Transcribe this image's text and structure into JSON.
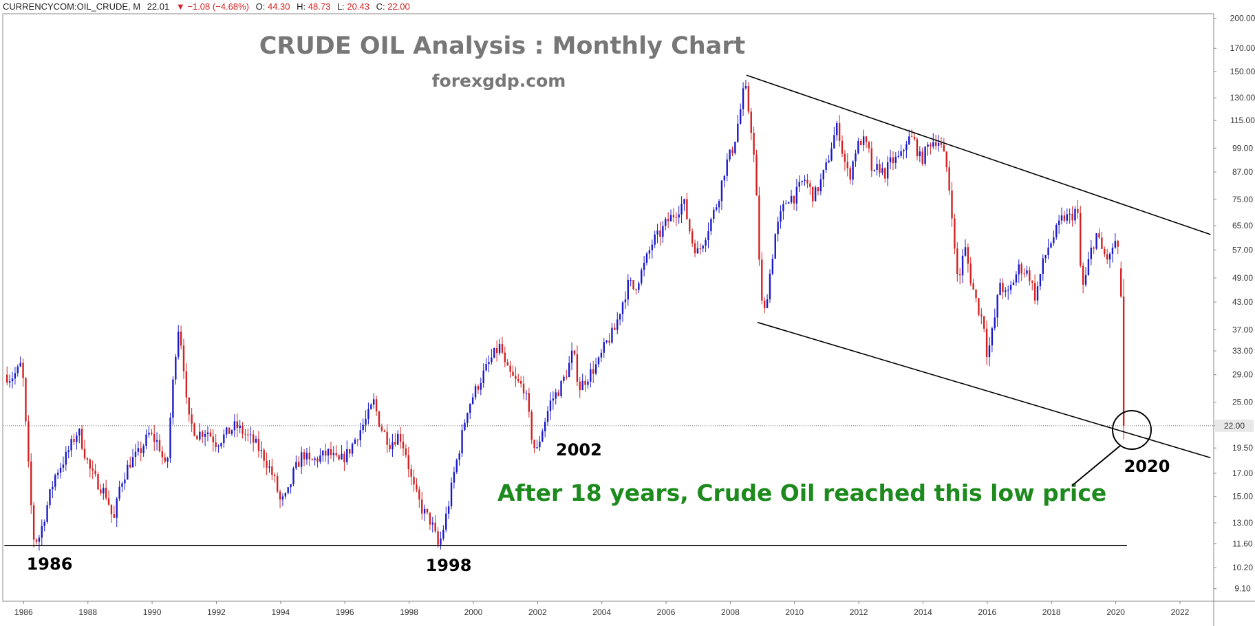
{
  "header": {
    "symbol": "CURRENCYCOM:OIL_CRUDE, M",
    "last": "22.01",
    "change": "−1.08 (−4.68%)",
    "o_label": "O:",
    "o_value": "44.30",
    "h_label": "H:",
    "h_value": "48.73",
    "l_label": "L:",
    "l_value": "20.43",
    "c_label": "C:",
    "c_value": "22.00",
    "down_arrow": "▼"
  },
  "chart_data": {
    "type": "candlestick",
    "title": "CRUDE OIL Analysis : Monthly Chart",
    "subtitle": "forexgdp.com",
    "scale": "log",
    "ylim": [
      8.5,
      205
    ],
    "xlim": [
      1985.35,
      2023.05
    ],
    "y_ticks": [
      200,
      170,
      150,
      130,
      115,
      99,
      87,
      75,
      65,
      57,
      49,
      43,
      37,
      33,
      29,
      25,
      22,
      19.5,
      17,
      15,
      13,
      11.6,
      10.2,
      9.1
    ],
    "y_tick_labels": [
      "200.00",
      "170.00",
      "150.00",
      "130.00",
      "115.00",
      "99.00",
      "87.00",
      "75.00",
      "65.00",
      "57.00",
      "49.00",
      "43.00",
      "37.00",
      "33.00",
      "29.00",
      "25.00",
      "22.00",
      "19.50",
      "17.00",
      "15.00",
      "13.00",
      "11.60",
      "10.20",
      "9.10"
    ],
    "x_ticks": [
      1986,
      1988,
      1990,
      1992,
      1994,
      1996,
      1998,
      2000,
      2002,
      2004,
      2006,
      2008,
      2010,
      2012,
      2014,
      2016,
      2018,
      2020,
      2022
    ],
    "x_tick_labels": [
      "1986",
      "1988",
      "1990",
      "1992",
      "1994",
      "1996",
      "1998",
      "2000",
      "2002",
      "2004",
      "2006",
      "2008",
      "2010",
      "2012",
      "2014",
      "2016",
      "2018",
      "2020",
      "2022"
    ],
    "current_price": 22.0,
    "current_price_label": "22.00",
    "colors": {
      "up": "#1a1acc",
      "down": "#d42020",
      "trend": "#000000",
      "annotation": "#1d8a1d",
      "title": "#777777"
    },
    "close_path": [
      [
        1985.4,
        29
      ],
      [
        1985.6,
        28.5
      ],
      [
        1985.8,
        29.5
      ],
      [
        1985.95,
        31
      ],
      [
        1986.1,
        20
      ],
      [
        1986.3,
        12
      ],
      [
        1986.45,
        11.8
      ],
      [
        1986.6,
        13
      ],
      [
        1986.8,
        15
      ],
      [
        1987.0,
        17
      ],
      [
        1987.3,
        18.5
      ],
      [
        1987.5,
        20
      ],
      [
        1987.7,
        21.5
      ],
      [
        1987.9,
        19
      ],
      [
        1988.1,
        17
      ],
      [
        1988.35,
        16
      ],
      [
        1988.6,
        15
      ],
      [
        1988.8,
        13
      ],
      [
        1989.0,
        16
      ],
      [
        1989.3,
        18
      ],
      [
        1989.6,
        19
      ],
      [
        1989.9,
        21
      ],
      [
        1990.2,
        20
      ],
      [
        1990.45,
        17
      ],
      [
        1990.6,
        25
      ],
      [
        1990.8,
        38
      ],
      [
        1990.95,
        33
      ],
      [
        1991.1,
        23
      ],
      [
        1991.4,
        21
      ],
      [
        1991.7,
        21.5
      ],
      [
        1992.0,
        20
      ],
      [
        1992.3,
        21
      ],
      [
        1992.6,
        22
      ],
      [
        1992.9,
        21
      ],
      [
        1993.2,
        20
      ],
      [
        1993.5,
        18.5
      ],
      [
        1993.8,
        16.5
      ],
      [
        1994.0,
        14.5
      ],
      [
        1994.2,
        15
      ],
      [
        1994.4,
        17
      ],
      [
        1994.7,
        19
      ],
      [
        1994.9,
        18
      ],
      [
        1995.2,
        18.5
      ],
      [
        1995.5,
        19
      ],
      [
        1995.8,
        18
      ],
      [
        1996.1,
        19
      ],
      [
        1996.4,
        21
      ],
      [
        1996.7,
        23
      ],
      [
        1996.9,
        25
      ],
      [
        1997.1,
        22
      ],
      [
        1997.4,
        20
      ],
      [
        1997.7,
        21
      ],
      [
        1997.9,
        19
      ],
      [
        1998.1,
        16
      ],
      [
        1998.4,
        14
      ],
      [
        1998.7,
        13
      ],
      [
        1998.9,
        11.5
      ],
      [
        1999.0,
        12
      ],
      [
        1999.2,
        14
      ],
      [
        1999.4,
        17
      ],
      [
        1999.6,
        20
      ],
      [
        1999.8,
        24
      ],
      [
        2000.0,
        26
      ],
      [
        2000.3,
        29
      ],
      [
        2000.6,
        32
      ],
      [
        2000.85,
        34
      ],
      [
        2001.0,
        30
      ],
      [
        2001.3,
        28
      ],
      [
        2001.6,
        27
      ],
      [
        2001.85,
        20
      ],
      [
        2001.97,
        19
      ],
      [
        2002.1,
        21
      ],
      [
        2002.4,
        25
      ],
      [
        2002.7,
        27
      ],
      [
        2002.95,
        30
      ],
      [
        2003.1,
        33
      ],
      [
        2003.3,
        27
      ],
      [
        2003.6,
        29
      ],
      [
        2003.9,
        31
      ],
      [
        2004.1,
        34
      ],
      [
        2004.4,
        37
      ],
      [
        2004.6,
        42
      ],
      [
        2004.85,
        48
      ],
      [
        2005.0,
        46
      ],
      [
        2005.3,
        52
      ],
      [
        2005.6,
        60
      ],
      [
        2005.8,
        62
      ],
      [
        2006.0,
        66
      ],
      [
        2006.3,
        70
      ],
      [
        2006.55,
        74
      ],
      [
        2006.8,
        60
      ],
      [
        2007.0,
        56
      ],
      [
        2007.3,
        64
      ],
      [
        2007.6,
        74
      ],
      [
        2007.85,
        90
      ],
      [
        2008.1,
        100
      ],
      [
        2008.3,
        120
      ],
      [
        2008.45,
        140
      ],
      [
        2008.55,
        124
      ],
      [
        2008.7,
        104
      ],
      [
        2008.85,
        68
      ],
      [
        2008.95,
        44
      ],
      [
        2009.05,
        40
      ],
      [
        2009.2,
        48
      ],
      [
        2009.4,
        62
      ],
      [
        2009.6,
        70
      ],
      [
        2009.8,
        76
      ],
      [
        2010.0,
        76
      ],
      [
        2010.3,
        84
      ],
      [
        2010.6,
        76
      ],
      [
        2010.8,
        82
      ],
      [
        2011.0,
        90
      ],
      [
        2011.2,
        104
      ],
      [
        2011.35,
        112
      ],
      [
        2011.5,
        96
      ],
      [
        2011.7,
        84
      ],
      [
        2011.9,
        98
      ],
      [
        2012.1,
        104
      ],
      [
        2012.3,
        98
      ],
      [
        2012.45,
        84
      ],
      [
        2012.6,
        90
      ],
      [
        2012.8,
        86
      ],
      [
        2013.0,
        92
      ],
      [
        2013.3,
        94
      ],
      [
        2013.5,
        104
      ],
      [
        2013.7,
        104
      ],
      [
        2013.9,
        94
      ],
      [
        2014.0,
        94
      ],
      [
        2014.2,
        102
      ],
      [
        2014.45,
        104
      ],
      [
        2014.6,
        98
      ],
      [
        2014.75,
        88
      ],
      [
        2014.9,
        70
      ],
      [
        2015.0,
        54
      ],
      [
        2015.1,
        48
      ],
      [
        2015.3,
        58
      ],
      [
        2015.5,
        48
      ],
      [
        2015.7,
        42
      ],
      [
        2015.9,
        38
      ],
      [
        2016.0,
        32
      ],
      [
        2016.2,
        38
      ],
      [
        2016.4,
        48
      ],
      [
        2016.6,
        44
      ],
      [
        2016.8,
        48
      ],
      [
        2017.0,
        52
      ],
      [
        2017.3,
        50
      ],
      [
        2017.5,
        44
      ],
      [
        2017.7,
        52
      ],
      [
        2017.9,
        58
      ],
      [
        2018.1,
        62
      ],
      [
        2018.35,
        68
      ],
      [
        2018.6,
        68
      ],
      [
        2018.8,
        72
      ],
      [
        2018.9,
        52
      ],
      [
        2019.0,
        46
      ],
      [
        2019.2,
        56
      ],
      [
        2019.4,
        62
      ],
      [
        2019.6,
        56
      ],
      [
        2019.8,
        54
      ],
      [
        2019.95,
        60
      ],
      [
        2020.05,
        58
      ],
      [
        2020.15,
        48
      ],
      [
        2020.25,
        22
      ]
    ],
    "highlight_candles": [
      {
        "date": "2020-02",
        "open": 51.6,
        "high": 53.5,
        "low": 44.0,
        "close": 44.3
      },
      {
        "date": "2020-03",
        "open": 44.3,
        "high": 48.73,
        "low": 20.43,
        "close": 22.0
      }
    ],
    "support_line": {
      "x": [
        1985.4,
        2020.35
      ],
      "y": [
        11.5,
        11.5
      ]
    },
    "channel_upper": {
      "x": [
        2008.5,
        2022.95
      ],
      "y": [
        147,
        62
      ]
    },
    "channel_lower": {
      "x": [
        2008.85,
        2022.95
      ],
      "y": [
        38.5,
        18.5
      ]
    }
  },
  "annotations": {
    "label_1986": "1986",
    "label_1998": "1998",
    "label_2002": "2002",
    "label_2020": "2020",
    "note": "After 18 years, Crude Oil reached this low price"
  }
}
